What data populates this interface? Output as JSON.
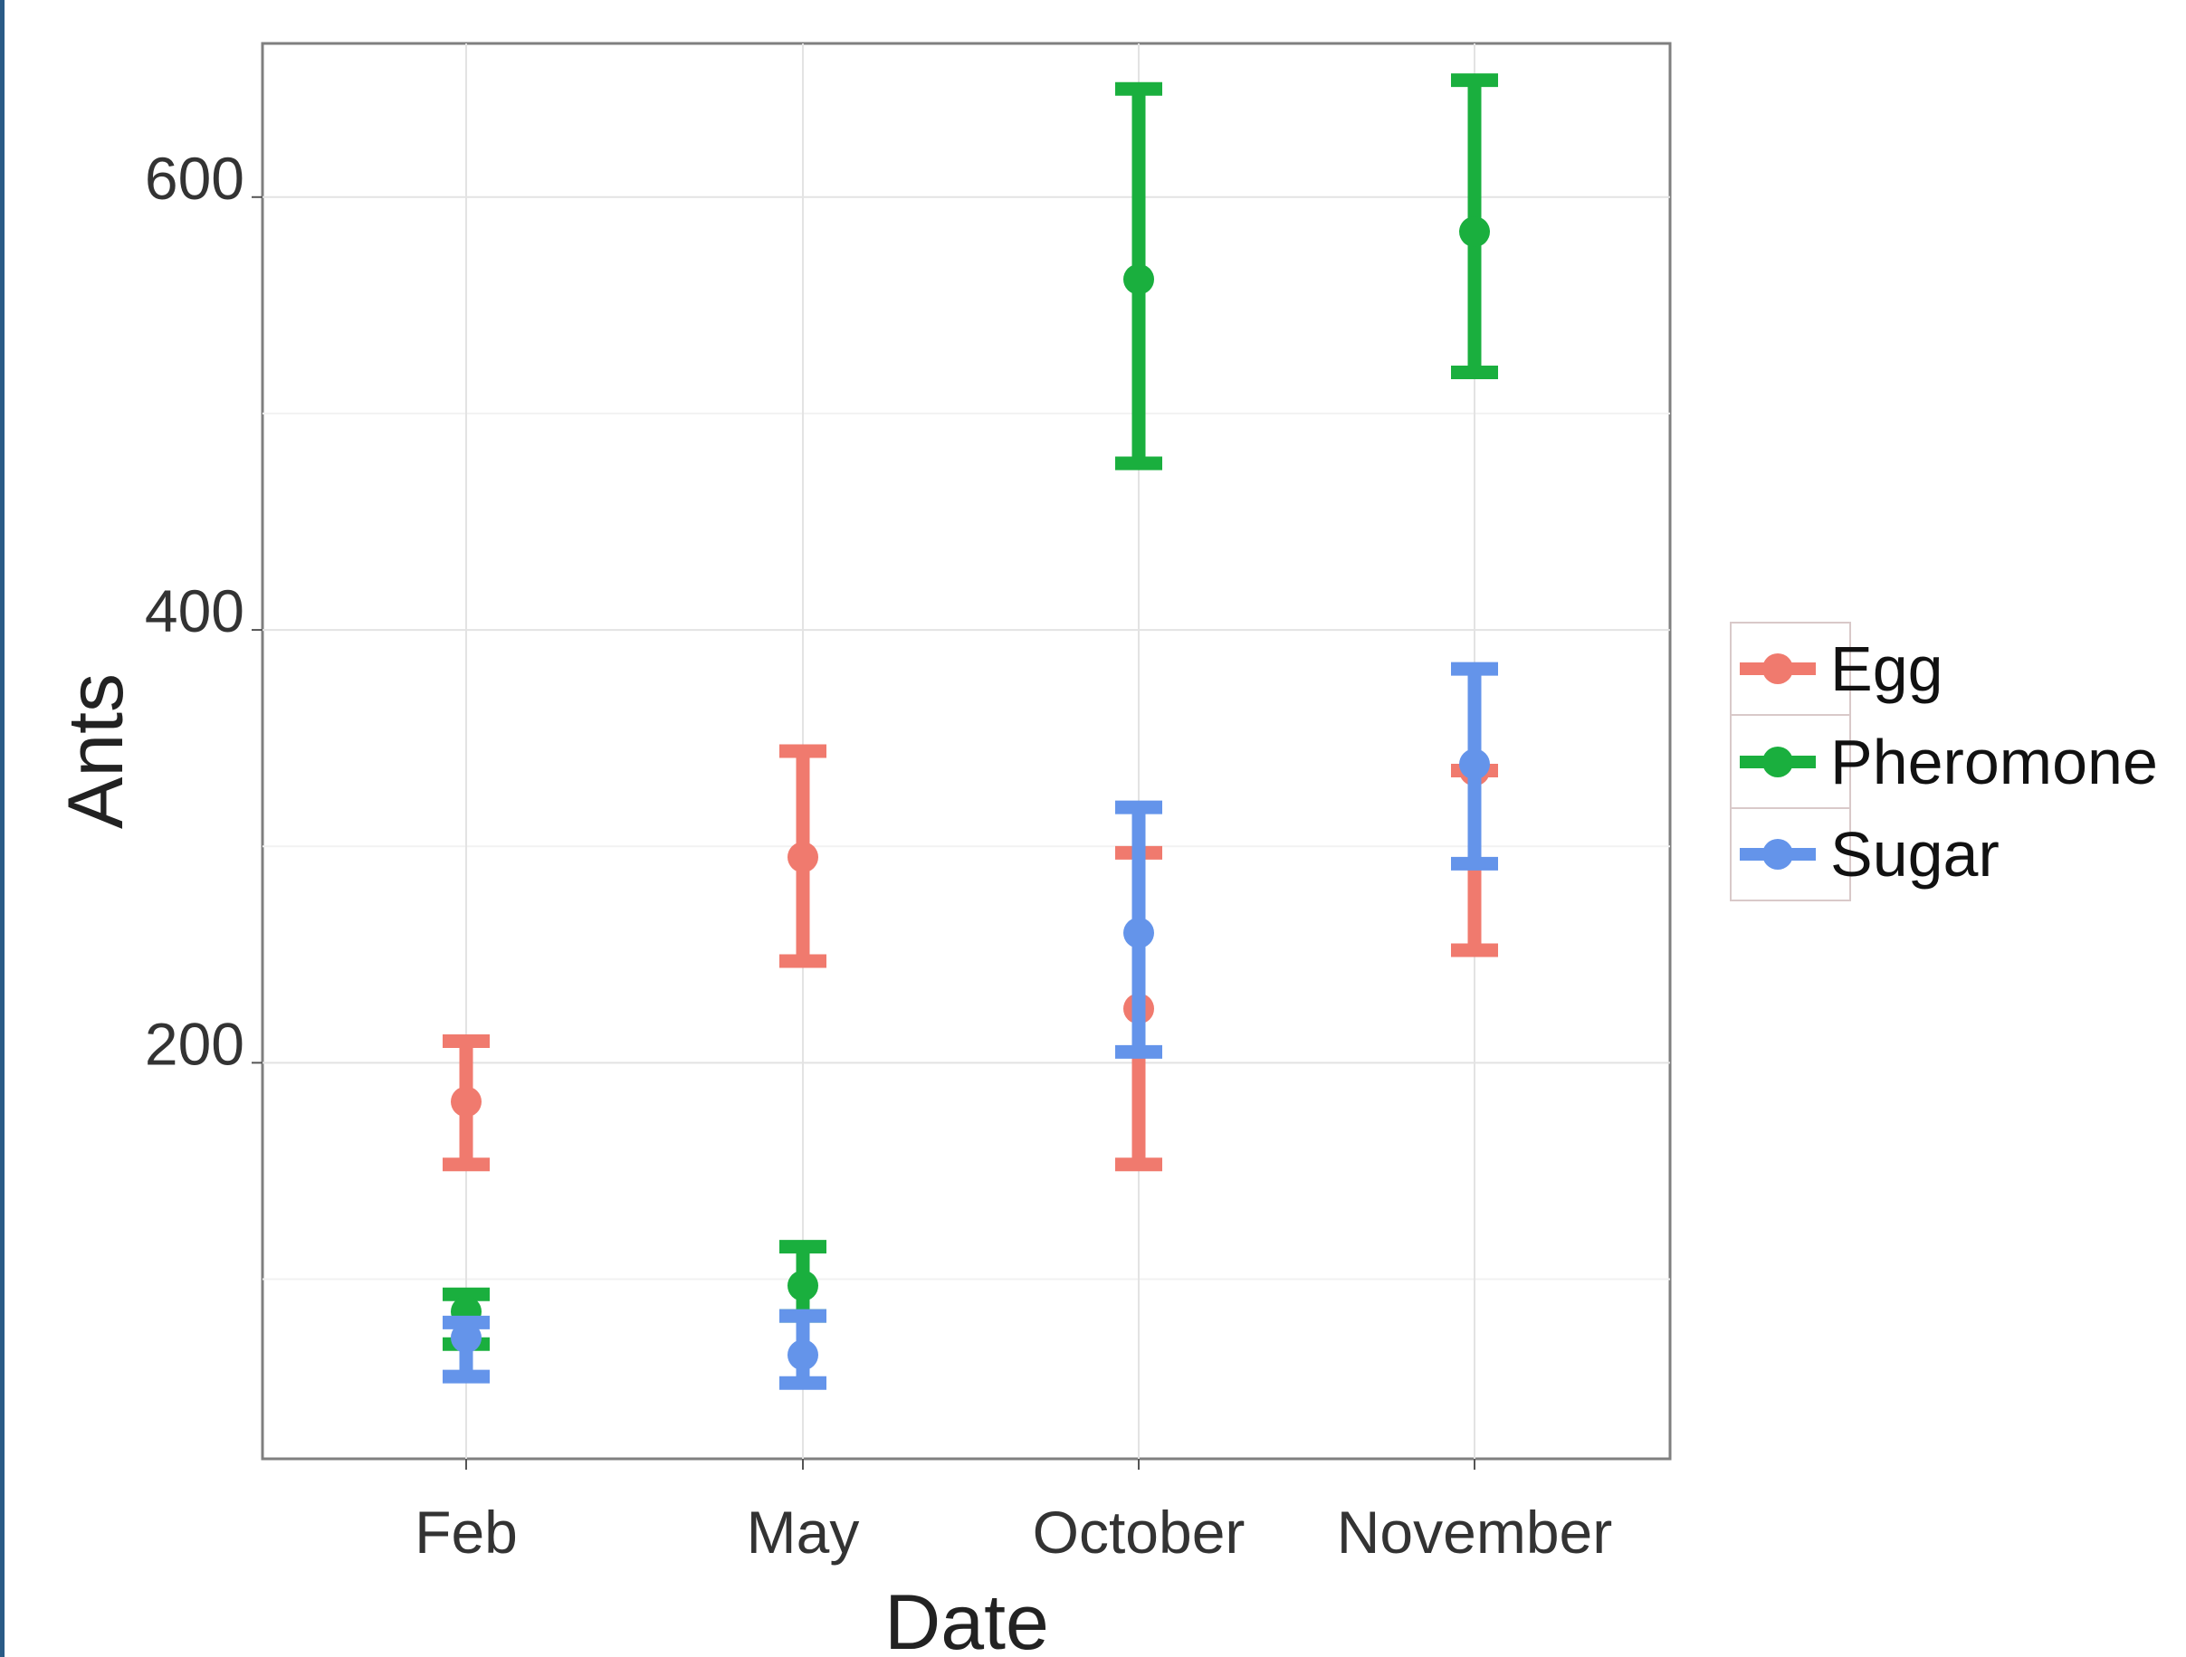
{
  "chart_data": {
    "type": "errorbar",
    "title": "",
    "xlabel": "Date",
    "ylabel": "Ants",
    "categories": [
      "Feb",
      "May",
      "October",
      "November"
    ],
    "y_ticks": [
      "200",
      "400",
      "600"
    ],
    "y_tick_values": [
      200,
      400,
      600
    ],
    "ylim": [
      17,
      671
    ],
    "grid": true,
    "legend_position": "right",
    "series": [
      {
        "name": "Egg",
        "color": "#F07A6E",
        "values": [
          182,
          295,
          225,
          335
        ],
        "lower": [
          153,
          247,
          153,
          252
        ],
        "upper": [
          210,
          344,
          297,
          335
        ]
      },
      {
        "name": "Pheromone",
        "color": "#1AAF3E",
        "values": [
          85,
          97,
          562,
          584
        ],
        "lower": [
          70,
          83,
          477,
          519
        ],
        "upper": [
          93,
          115,
          650,
          654
        ]
      },
      {
        "name": "Sugar",
        "color": "#6494EA",
        "values": [
          73,
          65,
          260,
          338
        ],
        "lower": [
          55,
          52,
          205,
          292
        ],
        "upper": [
          80,
          83,
          318,
          382
        ]
      }
    ]
  }
}
